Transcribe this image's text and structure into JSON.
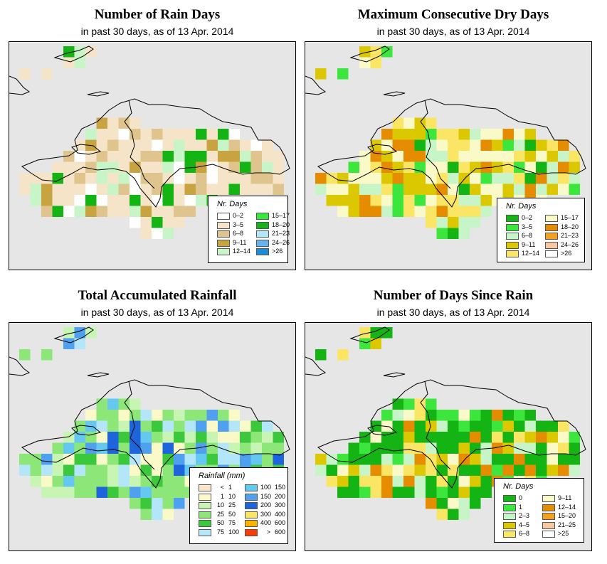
{
  "panels": [
    {
      "id": "rain-days",
      "title": "Number of Rain Days",
      "subtitle": "in past 30 days, as of  13 Apr. 2014",
      "legend": {
        "title": "Nr. Days",
        "items": [
          {
            "label": "0–2",
            "color": "#ffffff"
          },
          {
            "label": "3–5",
            "color": "#f5e4c8"
          },
          {
            "label": "6–8",
            "color": "#e0c48e"
          },
          {
            "label": "9–11",
            "color": "#c8a440"
          },
          {
            "label": "12–14",
            "color": "#c8f5c8"
          },
          {
            "label": "15–17",
            "color": "#3ce63c"
          },
          {
            "label": "18–20",
            "color": "#14b414"
          },
          {
            "label": "21–23",
            "color": "#b4e6fa"
          },
          {
            "label": "24–26",
            "color": "#64b4f0"
          },
          {
            "label": ">26",
            "color": "#1e8cd2"
          }
        ]
      }
    },
    {
      "id": "max-dry-days",
      "title": "Maximum Consecutive Dry Days",
      "subtitle": "in past 30 days, as of  13 Apr. 2014",
      "legend": {
        "title": "Nr. Days",
        "items": [
          {
            "label": "0–2",
            "color": "#14b414"
          },
          {
            "label": "3–5",
            "color": "#3ce63c"
          },
          {
            "label": "6–8",
            "color": "#c8f5c8"
          },
          {
            "label": "9–11",
            "color": "#dcc800"
          },
          {
            "label": "12–14",
            "color": "#fae664"
          },
          {
            "label": "15–17",
            "color": "#fafac8"
          },
          {
            "label": "18–20",
            "color": "#e68c00"
          },
          {
            "label": "21–23",
            "color": "#f5a01e"
          },
          {
            "label": "24–26",
            "color": "#fac8a0"
          },
          {
            "label": ">26",
            "color": "#ffffff"
          }
        ]
      }
    },
    {
      "id": "total-rainfall",
      "title": "Total Accumulated Rainfall",
      "subtitle": "in past 30 days, as of  13 Apr. 2014",
      "legend": {
        "title": "Rainfall (mm)",
        "items": [
          {
            "lo": "<",
            "hi": "1",
            "color": "#fae6c8"
          },
          {
            "lo": "1",
            "hi": "10",
            "color": "#fafac8"
          },
          {
            "lo": "10",
            "hi": "25",
            "color": "#c8f5b4"
          },
          {
            "lo": "25",
            "hi": "50",
            "color": "#8ce678"
          },
          {
            "lo": "50",
            "hi": "75",
            "color": "#3cc83c"
          },
          {
            "lo": "75",
            "hi": "100",
            "color": "#b4e6fa"
          },
          {
            "lo": "100",
            "hi": "150",
            "color": "#64c8f0"
          },
          {
            "lo": "150",
            "hi": "200",
            "color": "#50a0f0"
          },
          {
            "lo": "200",
            "hi": "300",
            "color": "#1e64dc"
          },
          {
            "lo": "300",
            "hi": "400",
            "color": "#fae664"
          },
          {
            "lo": "400",
            "hi": "600",
            "color": "#fab400"
          },
          {
            "lo": ">",
            "hi": "600",
            "color": "#fa3c00"
          }
        ]
      }
    },
    {
      "id": "days-since-rain",
      "title": "Number of Days Since Rain",
      "subtitle": "in past 30 days, as of  13 Apr. 2014",
      "legend": {
        "title": "Nr. Days",
        "items": [
          {
            "label": "0",
            "color": "#14b414"
          },
          {
            "label": "1",
            "color": "#3ce63c"
          },
          {
            "label": "2–3",
            "color": "#c8f5c8"
          },
          {
            "label": "4–5",
            "color": "#dcc800"
          },
          {
            "label": "6–8",
            "color": "#fae664"
          },
          {
            "label": "9–11",
            "color": "#fafac8"
          },
          {
            "label": "12–14",
            "color": "#e68c00"
          },
          {
            "label": "15–20",
            "color": "#f5a01e"
          },
          {
            "label": "21–25",
            "color": "#fac8a0"
          },
          {
            "label": ">25",
            "color": "#ffffff"
          }
        ]
      }
    }
  ]
}
